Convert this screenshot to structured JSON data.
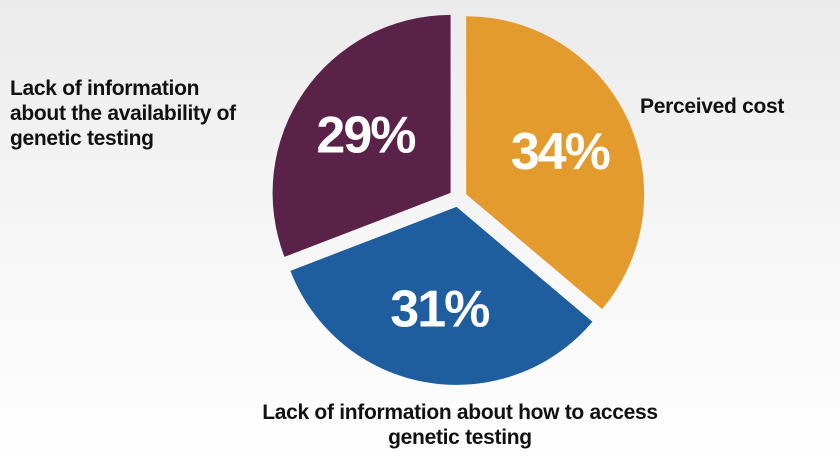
{
  "chart_data": {
    "type": "pie",
    "categories": [
      "Perceived cost",
      "Lack of information about how to access genetic testing",
      "Lack of information about the availability of genetic testing"
    ],
    "values": [
      34,
      31,
      29
    ],
    "value_labels": [
      "34%",
      "31%",
      "29%"
    ],
    "colors": [
      "#e39b2e",
      "#1e5d9e",
      "#5a2249"
    ]
  }
}
